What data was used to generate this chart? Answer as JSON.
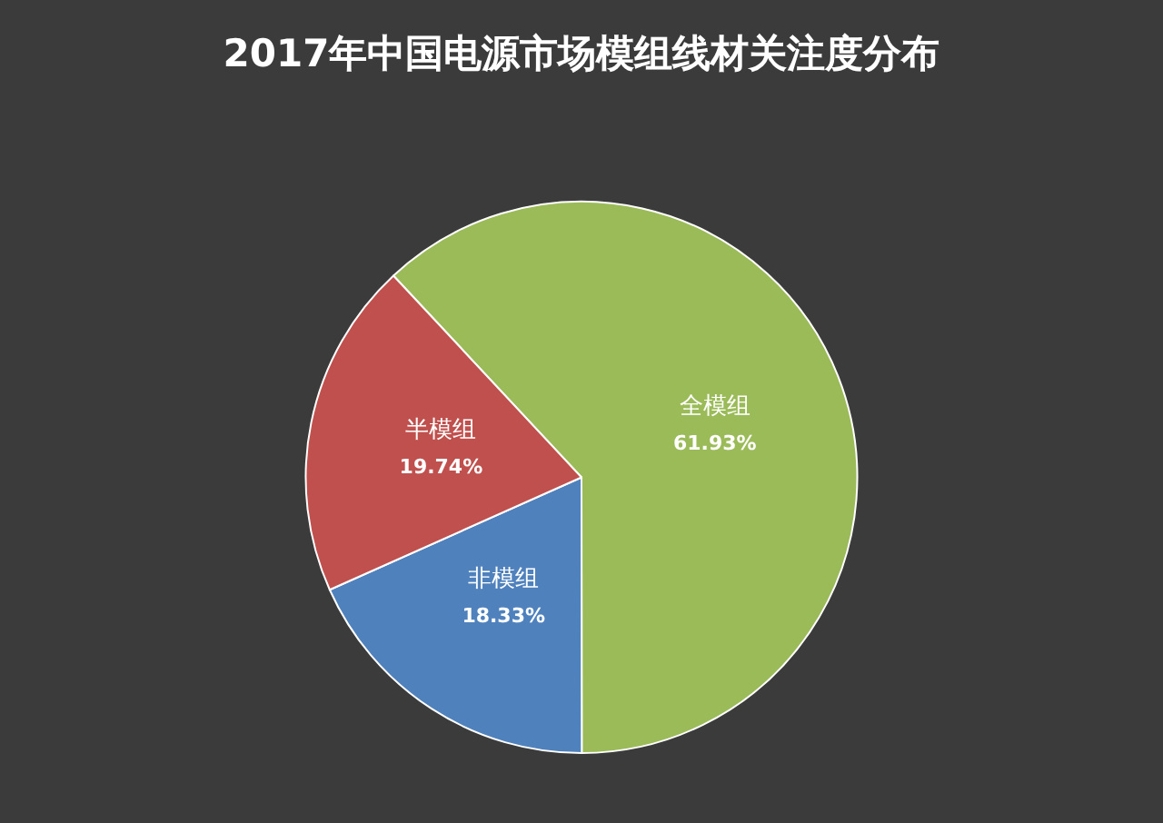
{
  "chart_data": {
    "type": "pie",
    "title": "2017年中国电源市场模组线材关注度分布",
    "categories": [
      "全模组",
      "非模组",
      "半模组"
    ],
    "values": [
      61.93,
      18.33,
      19.74
    ],
    "colors": [
      "#9bbb59",
      "#4f81bd",
      "#c0504d"
    ],
    "value_labels": [
      "61.93%",
      "18.33%",
      "19.74%"
    ],
    "legend": false
  }
}
